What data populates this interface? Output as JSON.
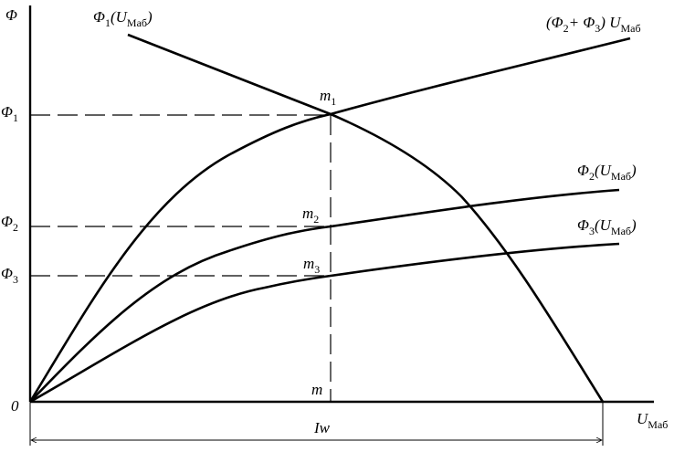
{
  "axis": {
    "y_label": [
      "Φ"
    ],
    "x_label": [
      "U",
      "Маб"
    ],
    "origin": "0",
    "span": "Iw"
  },
  "curves": {
    "phi1": [
      "Φ",
      "1",
      "(U",
      "Маб",
      ")"
    ],
    "phi23": [
      "(Φ",
      "2",
      "+ Φ",
      "3",
      ") U",
      "Маб"
    ],
    "phi2": [
      "Φ",
      "2",
      "(U",
      "Маб",
      ")"
    ],
    "phi3": [
      "Φ",
      "3",
      "(U",
      "Маб",
      ")"
    ]
  },
  "points": {
    "m1": [
      "m",
      "1"
    ],
    "m2": [
      "m",
      "2"
    ],
    "m3": [
      "m",
      "3"
    ],
    "m": [
      "m"
    ]
  },
  "levels": {
    "phi1": [
      "Φ",
      "1"
    ],
    "phi2": [
      "Φ",
      "2"
    ],
    "phi3": [
      "Φ",
      "3"
    ]
  }
}
